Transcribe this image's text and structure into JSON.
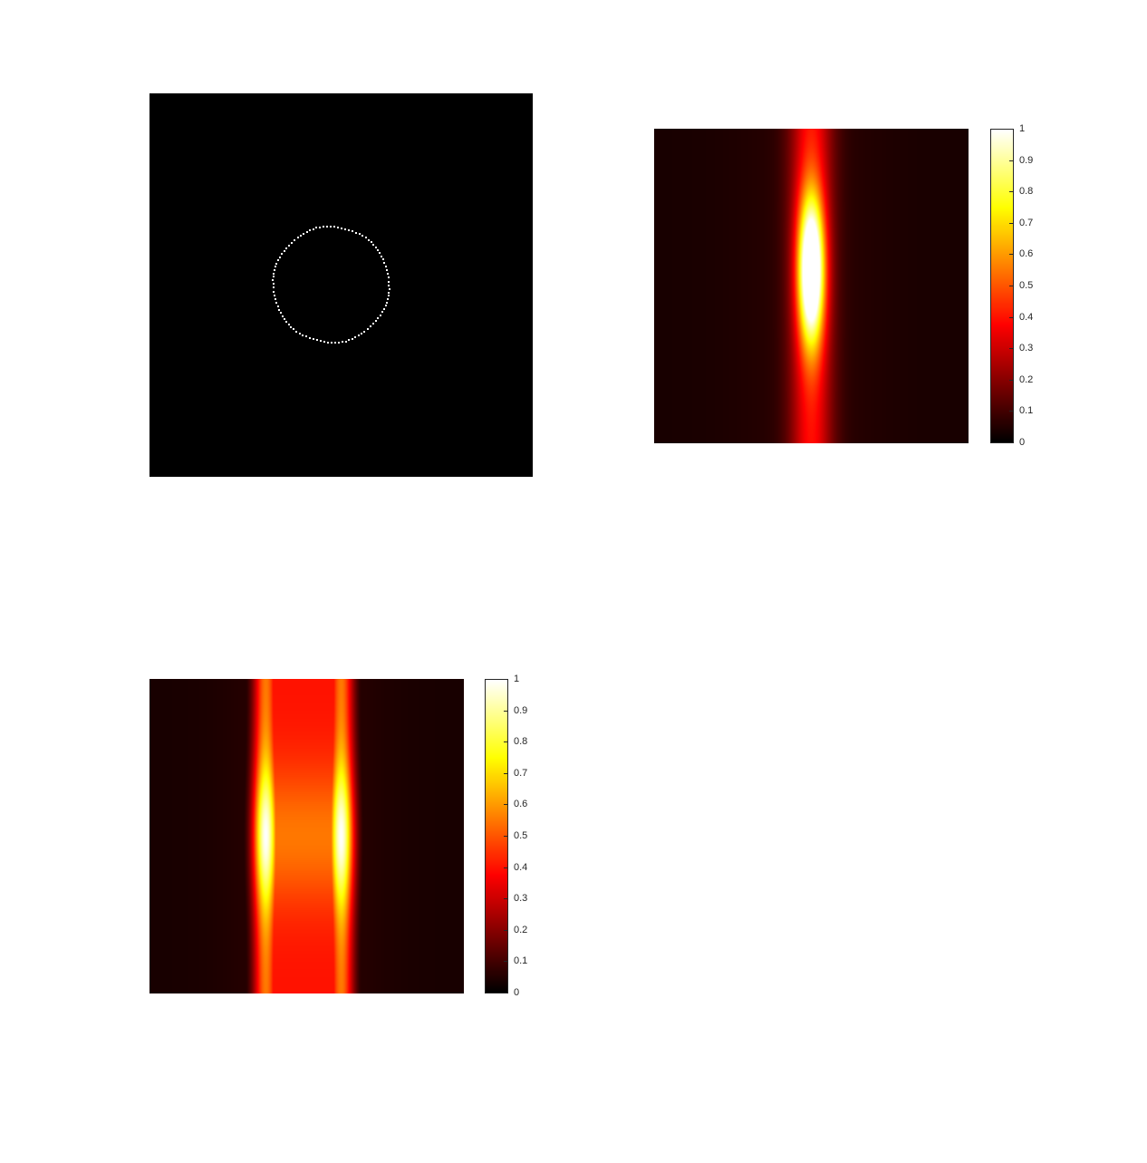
{
  "colormap": "hot",
  "colors": {
    "background": "#ffffff",
    "image_background": "#000000",
    "ring": "#ffffff",
    "tick_text": "#262626"
  },
  "chart_data": [
    {
      "type": "heatmap",
      "name": "binary-ring-image",
      "colormap": "gray",
      "title": "",
      "xlabel": "",
      "ylabel": "",
      "axes_visible": false,
      "grid": false,
      "content": "dotted ring",
      "ring": {
        "center_x": 0.5,
        "center_y": 0.5,
        "radius": 0.15,
        "dots": 100
      }
    },
    {
      "type": "heatmap",
      "name": "single-beam-intensity",
      "colormap": "hot",
      "title": "",
      "xlabel": "",
      "ylabel": "",
      "axes_visible": false,
      "grid": false,
      "clim": [
        0,
        1
      ],
      "colorbar": {
        "position": "right",
        "ticks": [
          "0",
          "0.1",
          "0.2",
          "0.3",
          "0.4",
          "0.5",
          "0.6",
          "0.7",
          "0.8",
          "0.9",
          "1"
        ]
      },
      "profile": {
        "peak_center_x": 0.5,
        "x_width": 0.045,
        "y_center": 0.45,
        "y_width": 0.24
      }
    },
    {
      "type": "heatmap",
      "name": "double-beam-intensity",
      "colormap": "hot",
      "title": "",
      "xlabel": "",
      "ylabel": "",
      "axes_visible": false,
      "grid": false,
      "clim": [
        0,
        1
      ],
      "colorbar": {
        "position": "right",
        "ticks": [
          "0",
          "0.1",
          "0.2",
          "0.3",
          "0.4",
          "0.5",
          "0.6",
          "0.7",
          "0.8",
          "0.9",
          "1"
        ]
      },
      "profile": {
        "peak_centers_x": [
          0.37,
          0.61
        ],
        "x_width": 0.045,
        "y_center": 0.5,
        "y_width": 0.22,
        "middle_level": 0.55,
        "edge_level": 0.4
      }
    }
  ]
}
